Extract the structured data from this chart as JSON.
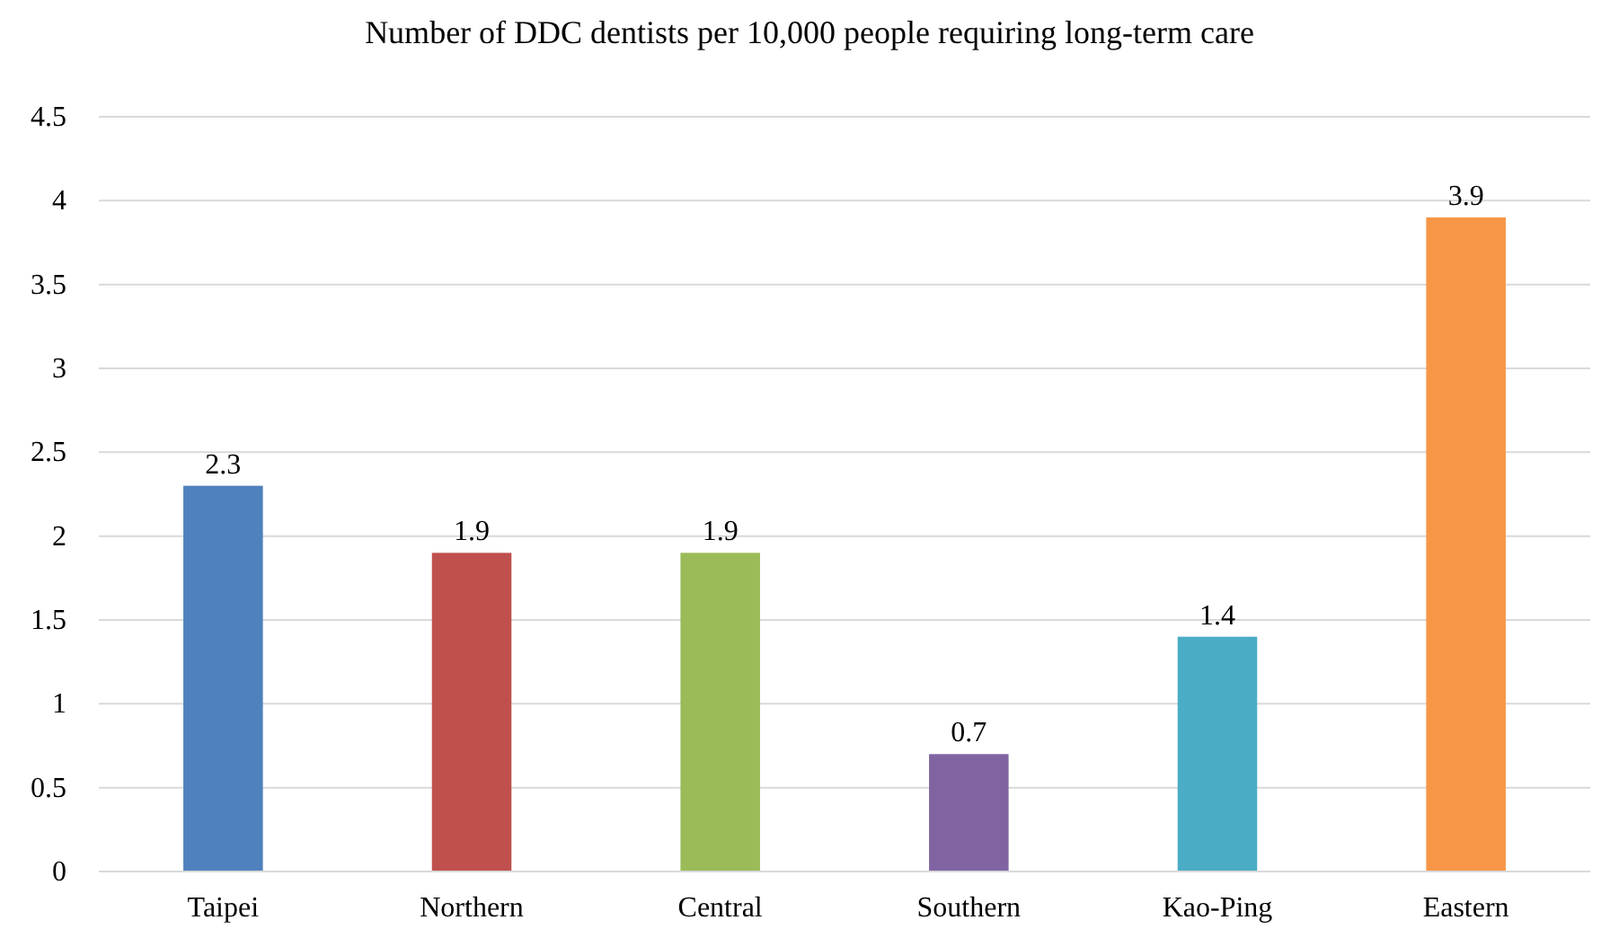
{
  "chart_data": {
    "type": "bar",
    "title": "Number of DDC dentists per 10,000 people requiring long-term care",
    "categories": [
      "Taipei",
      "Northern",
      "Central",
      "Southern",
      "Kao-Ping",
      "Eastern"
    ],
    "values": [
      2.3,
      1.9,
      1.9,
      0.7,
      1.4,
      3.9
    ],
    "colors": [
      "#4f81bd",
      "#c0504d",
      "#9bbb59",
      "#8064a2",
      "#4bacc6",
      "#f79646"
    ],
    "ylim": [
      0,
      4.5
    ],
    "yticks": [
      0,
      0.5,
      1,
      1.5,
      2,
      2.5,
      3,
      3.5,
      4,
      4.5
    ],
    "grid": "y",
    "data_labels": true
  }
}
